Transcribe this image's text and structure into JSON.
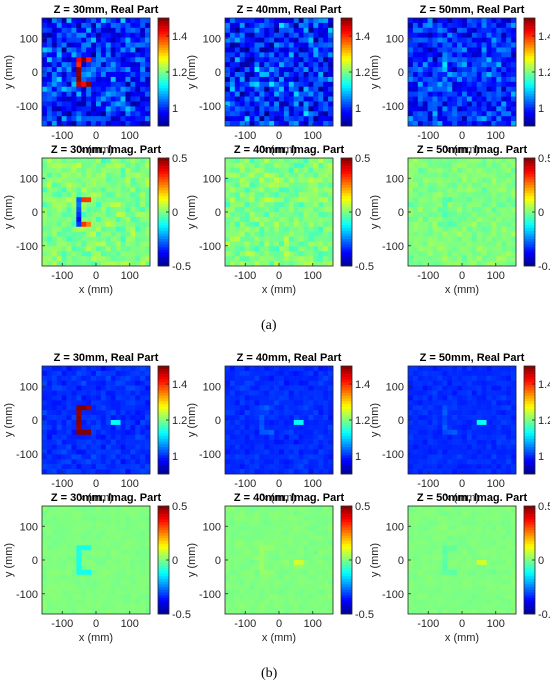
{
  "figure": {
    "captions": [
      "(a)",
      "(b)"
    ]
  },
  "colormap": {
    "name": "jet",
    "stops": [
      "#00008f",
      "#0000ff",
      "#00ffff",
      "#ffff00",
      "#ff0000",
      "#800000"
    ]
  },
  "chart_data": [
    {
      "panel": "a",
      "type": "heatmap",
      "title": "Z = 30mm, Real Part",
      "xlabel": "x (mm)",
      "ylabel": "y (mm)",
      "xticks": [
        -100,
        0,
        100
      ],
      "yticks": [
        100,
        0,
        -100
      ],
      "xlim": [
        -160,
        160
      ],
      "ylim": [
        -160,
        160
      ],
      "clim": [
        0.9,
        1.5
      ],
      "cbar_ticks": [
        "1.4",
        "1.2",
        "1"
      ],
      "cbar_values": [
        1.4,
        1.2,
        1.0
      ],
      "background": 1.0,
      "noise": 0.07,
      "c_shape_strength": 0.45,
      "c_shape_width": "narrow",
      "dot": false
    },
    {
      "panel": "a",
      "type": "heatmap",
      "title": "Z = 40mm, Real Part",
      "xlabel": "x (mm)",
      "ylabel": "y (mm)",
      "xticks": [
        -100,
        0,
        100
      ],
      "yticks": [
        100,
        0,
        -100
      ],
      "xlim": [
        -160,
        160
      ],
      "ylim": [
        -160,
        160
      ],
      "clim": [
        0.9,
        1.5
      ],
      "cbar_ticks": [
        "1.4",
        "1.2",
        "1"
      ],
      "cbar_values": [
        1.4,
        1.2,
        1.0
      ],
      "background": 1.0,
      "noise": 0.08,
      "c_shape_strength": 0.05,
      "c_shape_width": "wide",
      "dot": false
    },
    {
      "panel": "a",
      "type": "heatmap",
      "title": "Z = 50mm, Real Part",
      "xlabel": "x (mm)",
      "ylabel": "y (mm)",
      "xticks": [
        -100,
        0,
        100
      ],
      "yticks": [
        100,
        0,
        -100
      ],
      "xlim": [
        -160,
        160
      ],
      "ylim": [
        -160,
        160
      ],
      "clim": [
        0.9,
        1.5
      ],
      "cbar_ticks": [
        "1.4",
        "1.2",
        "1"
      ],
      "cbar_values": [
        1.4,
        1.2,
        1.0
      ],
      "background": 1.0,
      "noise": 0.06,
      "c_shape_strength": 0.06,
      "c_shape_width": "wide",
      "dot": false
    },
    {
      "panel": "a",
      "type": "heatmap",
      "title": "Z = 30mm, Imag. Part",
      "xlabel": "x (mm)",
      "ylabel": "y (mm)",
      "xticks": [
        -100,
        0,
        100
      ],
      "yticks": [
        100,
        0,
        -100
      ],
      "xlim": [
        -160,
        160
      ],
      "ylim": [
        -160,
        160
      ],
      "clim": [
        -0.5,
        0.5
      ],
      "cbar_ticks": [
        "0.5",
        "0",
        "-0.5"
      ],
      "cbar_values": [
        0.5,
        0,
        -0.5
      ],
      "background": 0.0,
      "noise": 0.05,
      "c_shape_strength": 0.3,
      "c_shape_width": "narrow",
      "bipolar": true,
      "dot": false
    },
    {
      "panel": "a",
      "type": "heatmap",
      "title": "Z = 40mm, Imag. Part",
      "xlabel": "x (mm)",
      "ylabel": "y (mm)",
      "xticks": [
        -100,
        0,
        100
      ],
      "yticks": [
        100,
        0,
        -100
      ],
      "xlim": [
        -160,
        160
      ],
      "ylim": [
        -160,
        160
      ],
      "clim": [
        -0.5,
        0.5
      ],
      "cbar_ticks": [
        "0.5",
        "0",
        "-0.5"
      ],
      "cbar_values": [
        0.5,
        0,
        -0.5
      ],
      "background": 0.0,
      "noise": 0.05,
      "c_shape_strength": 0.03,
      "c_shape_width": "wide",
      "dot": false
    },
    {
      "panel": "a",
      "type": "heatmap",
      "title": "Z = 50mm, Imag. Part",
      "xlabel": "x (mm)",
      "ylabel": "y (mm)",
      "xticks": [
        -100,
        0,
        100
      ],
      "yticks": [
        100,
        0,
        -100
      ],
      "xlim": [
        -160,
        160
      ],
      "ylim": [
        -160,
        160
      ],
      "clim": [
        -0.5,
        0.5
      ],
      "cbar_ticks": [
        "0.5",
        "0",
        "-0.5"
      ],
      "cbar_values": [
        0.5,
        0,
        -0.5
      ],
      "background": 0.0,
      "noise": 0.03,
      "c_shape_strength": -0.07,
      "c_shape_width": "wide",
      "dot": false
    },
    {
      "panel": "b",
      "type": "heatmap",
      "title": "Z = 30mm, Real Part",
      "xlabel": "x (mm)",
      "ylabel": "y (mm)",
      "xticks": [
        -100,
        0,
        100
      ],
      "yticks": [
        100,
        0,
        -100
      ],
      "xlim": [
        -160,
        160
      ],
      "ylim": [
        -160,
        160
      ],
      "clim": [
        0.9,
        1.5
      ],
      "cbar_ticks": [
        "1.4",
        "1.2",
        "1"
      ],
      "cbar_values": [
        1.4,
        1.2,
        1.0
      ],
      "background": 1.0,
      "noise": 0.015,
      "c_shape_strength": 0.5,
      "c_shape_width": "ringed",
      "dot": true
    },
    {
      "panel": "b",
      "type": "heatmap",
      "title": "Z = 40mm, Real Part",
      "xlabel": "x (mm)",
      "ylabel": "y (mm)",
      "xticks": [
        -100,
        0,
        100
      ],
      "yticks": [
        100,
        0,
        -100
      ],
      "xlim": [
        -160,
        160
      ],
      "ylim": [
        -160,
        160
      ],
      "clim": [
        0.9,
        1.5
      ],
      "cbar_ticks": [
        "1.4",
        "1.2",
        "1"
      ],
      "cbar_values": [
        1.4,
        1.2,
        1.0
      ],
      "background": 1.0,
      "noise": 0.012,
      "c_shape_strength": 0.04,
      "c_shape_width": "wide",
      "dot": true
    },
    {
      "panel": "b",
      "type": "heatmap",
      "title": "Z = 50mm, Real Part",
      "xlabel": "x (mm)",
      "ylabel": "y (mm)",
      "xticks": [
        -100,
        0,
        100
      ],
      "yticks": [
        100,
        0,
        -100
      ],
      "xlim": [
        -160,
        160
      ],
      "ylim": [
        -160,
        160
      ],
      "clim": [
        0.9,
        1.5
      ],
      "cbar_ticks": [
        "1.4",
        "1.2",
        "1"
      ],
      "cbar_values": [
        1.4,
        1.2,
        1.0
      ],
      "background": 1.0,
      "noise": 0.01,
      "c_shape_strength": 0.03,
      "c_shape_width": "wide",
      "dot": true
    },
    {
      "panel": "b",
      "type": "heatmap",
      "title": "Z = 30mm, Imag. Part",
      "xlabel": "x (mm)",
      "ylabel": "y (mm)",
      "xticks": [
        -100,
        0,
        100
      ],
      "yticks": [
        100,
        0,
        -100
      ],
      "xlim": [
        -160,
        160
      ],
      "ylim": [
        -160,
        160
      ],
      "clim": [
        -0.5,
        0.5
      ],
      "cbar_ticks": [
        "0.5",
        "0",
        "-0.5"
      ],
      "cbar_values": [
        0.5,
        0,
        -0.5
      ],
      "background": 0.0,
      "noise": 0.01,
      "c_shape_strength": -0.1,
      "c_shape_width": "narrow",
      "dot": false
    },
    {
      "panel": "b",
      "type": "heatmap",
      "title": "Z = 40mm, Imag. Part",
      "xlabel": "x (mm)",
      "ylabel": "y (mm)",
      "xticks": [
        -100,
        0,
        100
      ],
      "yticks": [
        100,
        0,
        -100
      ],
      "xlim": [
        -160,
        160
      ],
      "ylim": [
        -160,
        160
      ],
      "clim": [
        -0.5,
        0.5
      ],
      "cbar_ticks": [
        "0.5",
        "0",
        "-0.5"
      ],
      "cbar_values": [
        0.5,
        0,
        -0.5
      ],
      "background": 0.0,
      "noise": 0.012,
      "c_shape_strength": 0.04,
      "c_shape_width": "wide",
      "dot": true
    },
    {
      "panel": "b",
      "type": "heatmap",
      "title": "Z = 50mm, Imag. Part",
      "xlabel": "x (mm)",
      "ylabel": "y (mm)",
      "xticks": [
        -100,
        0,
        100
      ],
      "yticks": [
        100,
        0,
        -100
      ],
      "xlim": [
        -160,
        160
      ],
      "ylim": [
        -160,
        160
      ],
      "clim": [
        -0.5,
        0.5
      ],
      "cbar_ticks": [
        "0.5",
        "0",
        "-0.5"
      ],
      "cbar_values": [
        0.5,
        0,
        -0.5
      ],
      "background": 0.0,
      "noise": 0.01,
      "c_shape_strength": -0.06,
      "c_shape_width": "wide",
      "dot": true
    }
  ]
}
